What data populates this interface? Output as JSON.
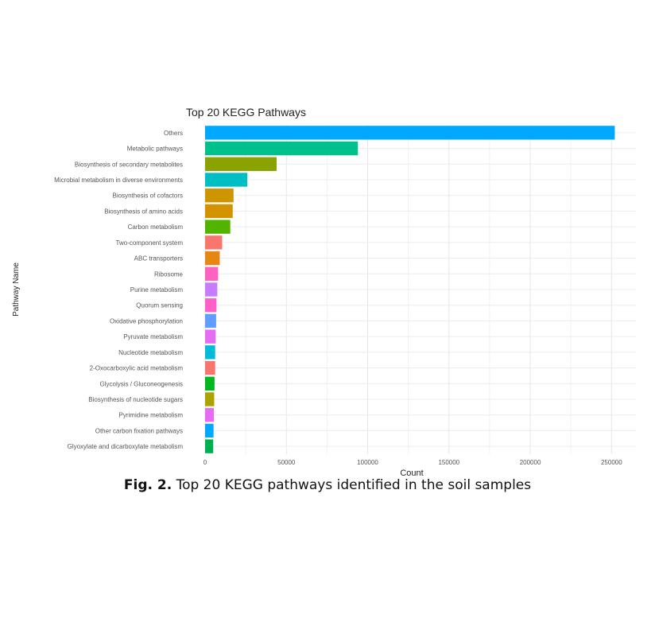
{
  "chart_data": {
    "type": "bar",
    "orientation": "horizontal",
    "title": "Top 20 KEGG Pathways",
    "xlabel": "Count",
    "ylabel": "Pathway Name",
    "xlim": [
      0,
      265000
    ],
    "xticks": [
      0,
      50000,
      100000,
      150000,
      200000,
      250000
    ],
    "xtick_labels": [
      "0",
      "50000",
      "100000",
      "150000",
      "200000",
      "250000"
    ],
    "grid": true,
    "legend": "none",
    "categories": [
      "Others",
      "Metabolic pathways",
      "Biosynthesis of secondary metabolites",
      "Microbial metabolism in diverse environments",
      "Biosynthesis of cofactors",
      "Biosynthesis of amino acids",
      "Carbon metabolism",
      "Two-component system",
      "ABC transporters",
      "Ribosome",
      "Purine metabolism",
      "Quorum sensing",
      "Oxidative phosphorylation",
      "Pyruvate metabolism",
      "Nucleotide metabolism",
      "2-Oxocarboxylic acid metabolism",
      "Glycolysis / Gluconeogenesis",
      "Biosynthesis of nucleotide sugars",
      "Pyrimidine metabolism",
      "Other carbon fixation pathways",
      "Glyoxylate and dicarboxylate metabolism"
    ],
    "values": [
      252000,
      94000,
      44000,
      26000,
      17500,
      17000,
      15500,
      10500,
      9000,
      8000,
      7500,
      7000,
      6800,
      6500,
      6200,
      6200,
      5800,
      5600,
      5400,
      5200,
      5000
    ],
    "colors": [
      "#00A9FF",
      "#00C08B",
      "#8AA300",
      "#00BFC4",
      "#CD9600",
      "#D39200",
      "#53B400",
      "#F8766D",
      "#E68613",
      "#FF61C3",
      "#C77CFF",
      "#FF61C9",
      "#619CFF",
      "#E76BF3",
      "#00BCD8",
      "#F8766D",
      "#00B81F",
      "#ABA300",
      "#E76BF3",
      "#00A9FF",
      "#00B050"
    ]
  },
  "caption": {
    "label": "Fig. 2.",
    "text": " Top 20 KEGG pathways identified in the soil samples"
  }
}
